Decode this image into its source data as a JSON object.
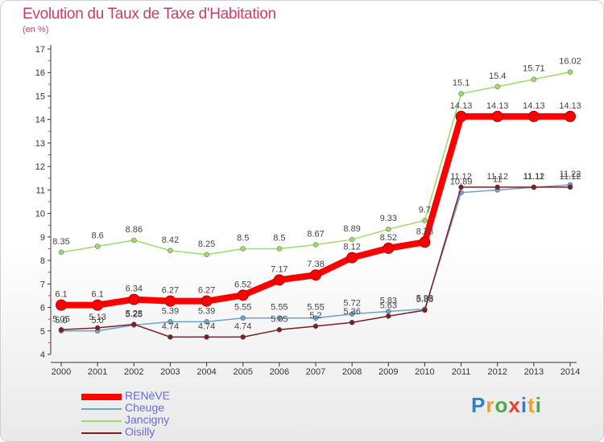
{
  "title": "Evolution du Taux de Taxe d'Habitation",
  "unit": "(en %)",
  "logo": "Proxiti",
  "colors": {
    "title": "#cc3d66",
    "legend_text": "#6a6ad9",
    "axis": "#333333",
    "tick_mark": "#cc3d66"
  },
  "chart_data": {
    "type": "line",
    "title": "Evolution du Taux de Taxe d'Habitation",
    "ylabel": "(en %)",
    "xlabel": "",
    "ylim": [
      4,
      17
    ],
    "yticks": [
      4,
      5,
      6,
      7,
      8,
      9,
      10,
      11,
      12,
      13,
      14,
      15,
      16,
      17
    ],
    "x": [
      "2000",
      "2001",
      "2002",
      "2003",
      "2004",
      "2005",
      "2006",
      "2007",
      "2008",
      "2009",
      "2010",
      "2011",
      "2012",
      "2013",
      "2014"
    ],
    "legend_position": "bottom-left",
    "grid": false,
    "series": [
      {
        "name": "RENèVE",
        "color": "#ff0000",
        "width": 8,
        "values": [
          6.1,
          6.1,
          6.34,
          6.27,
          6.27,
          6.52,
          7.17,
          7.38,
          8.12,
          8.52,
          8.78,
          14.13,
          14.13,
          14.13,
          14.13
        ],
        "labels": [
          "6.1",
          "6.1",
          "6.34",
          "6.27",
          "6.27",
          "6.52",
          "7.17",
          "7.38",
          "8.12",
          "8.52",
          "8.78",
          "14.13",
          "14.13",
          "14.13",
          "14.13"
        ]
      },
      {
        "name": "Cheuge",
        "color": "#6aa2d2",
        "width": 1.5,
        "values": [
          5.0,
          5.0,
          5.25,
          5.39,
          5.39,
          5.55,
          5.55,
          5.55,
          5.72,
          5.83,
          5.93,
          10.89,
          11.0,
          11.11,
          11.22
        ],
        "labels": [
          "5.0",
          "5.0",
          "5.25",
          "5.39",
          "5.39",
          "5.55",
          "5.55",
          "5.55",
          "5.72",
          "5.83",
          "5.93",
          "10.89",
          "11",
          "11.11",
          "11.22"
        ]
      },
      {
        "name": "Jancigny",
        "color": "#9bdc6b",
        "width": 1.5,
        "values": [
          8.35,
          8.6,
          8.86,
          8.42,
          8.25,
          8.5,
          8.5,
          8.67,
          8.89,
          9.33,
          9.7,
          15.1,
          15.4,
          15.71,
          16.02
        ],
        "labels": [
          "8.35",
          "8.6",
          "8.86",
          "8.42",
          "8.25",
          "8.5",
          "8.5",
          "8.67",
          "8.89",
          "9.33",
          "9.7",
          "15.1",
          "15.4",
          "15.71",
          "16.02"
        ]
      },
      {
        "name": "Oisilly",
        "color": "#7a1e20",
        "width": 1.5,
        "values": [
          5.05,
          5.13,
          5.28,
          4.74,
          4.74,
          4.74,
          5.05,
          5.2,
          5.36,
          5.63,
          5.88,
          11.12,
          11.12,
          11.12,
          11.12
        ],
        "labels": [
          "5.05",
          "5.13",
          "5.28",
          "4.74",
          "4.74",
          "4.74",
          "5.05",
          "5.2",
          "5.36",
          "5.63",
          "5.88",
          "11.12",
          "11.12",
          "11.12",
          "11.12"
        ]
      }
    ]
  }
}
